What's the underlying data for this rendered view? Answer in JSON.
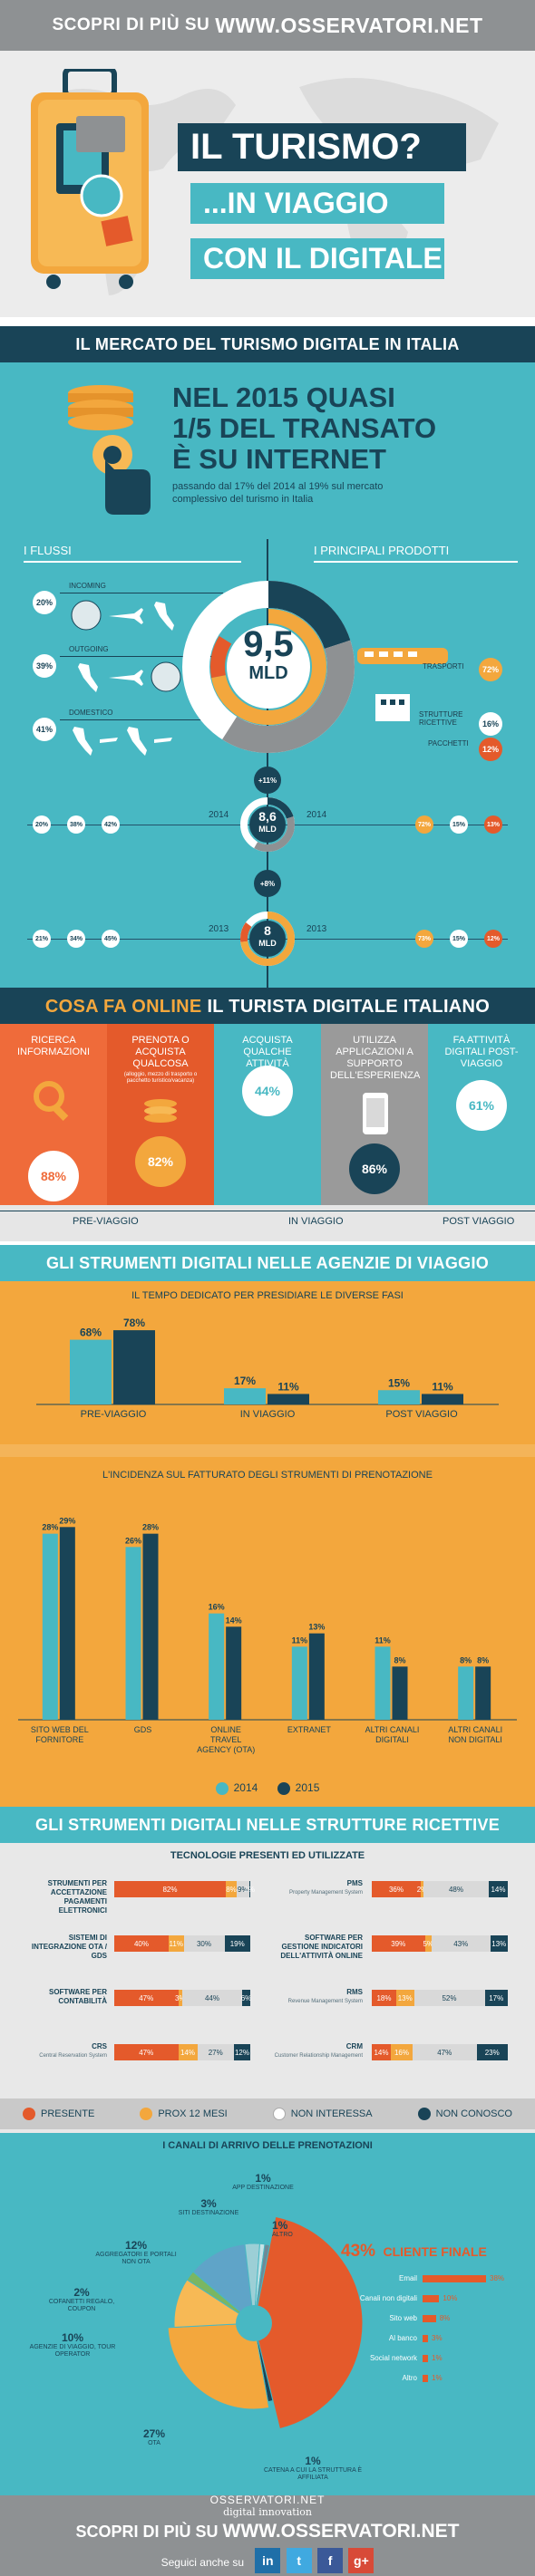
{
  "header": {
    "prefix": "SCOPRI DI PIÙ SU",
    "site": "WWW.OSSERVATORI.NET"
  },
  "hero": {
    "title": "IL TURISMO?",
    "line2": "...IN VIAGGIO",
    "line3": "CON IL DIGITALE"
  },
  "market": {
    "section_title": "IL MERCATO DEL TURISMO DIGITALE IN ITALIA",
    "headline": [
      "NEL 2015 QUASI",
      "1/5 DEL TRANSATO",
      "È SU INTERNET"
    ],
    "subline": [
      "passando dal 17% del 2014 al 19% sul mercato",
      "complessivo del turismo in Italia"
    ]
  },
  "flussi": {
    "left_header": "I FLUSSI",
    "right_header": "I PRINCIPALI PRODOTTI",
    "center_value": "9,5",
    "center_unit": "MLD",
    "flows": [
      {
        "label": "INCOMING",
        "pct": "20%"
      },
      {
        "label": "OUTGOING",
        "pct": "39%"
      },
      {
        "label": "DOMESTICO",
        "pct": "41%"
      }
    ],
    "products": [
      {
        "label": "TRASPORTI",
        "pct": "72%"
      },
      {
        "label": "STRUTTURE RICETTIVE",
        "pct": "16%"
      },
      {
        "label": "PACCHETTI",
        "pct": "12%"
      }
    ],
    "growth_2015": "+11%",
    "growth_2014": "+8%",
    "y2014": {
      "year": "2014",
      "value": "8,6",
      "unit": "MLD",
      "flows": [
        "20%",
        "38%",
        "42%"
      ],
      "products": [
        "72%",
        "15%",
        "13%"
      ]
    },
    "y2013": {
      "year": "2013",
      "value": "8",
      "unit": "MLD",
      "flows": [
        "21%",
        "34%",
        "45%"
      ],
      "products": [
        "73%",
        "15%",
        "12%"
      ]
    }
  },
  "online": {
    "section_title_a": "COSA FA ONLINE",
    "section_title_b": "IL TURISTA DIGITALE ITALIANO",
    "panels": [
      {
        "label": "RICERCA INFORMAZIONI",
        "pct": "88%",
        "color": "#ef6b3a"
      },
      {
        "label": "PRENOTA O ACQUISTA QUALCOSA",
        "sub": "(alloggio, mezzo di trasporto o pacchetto turistico/vacanza)",
        "pct": "82%",
        "color": "#e45a2b"
      },
      {
        "label": "ACQUISTA QUALCHE ATTIVITÀ",
        "pct": "44%",
        "color": "#48b8c3"
      },
      {
        "label": "UTILIZZA APPLICAZIONI A SUPPORTO DELL'ESPERIENZA",
        "pct": "86%",
        "color": "#9a9a9a"
      },
      {
        "label": "FA ATTIVITÀ DIGITALI POST-VIAGGIO",
        "pct": "61%",
        "color": "#48b8c3"
      }
    ],
    "phases": [
      "PRE-VIAGGIO",
      "IN VIAGGIO",
      "POST VIAGGIO"
    ]
  },
  "agenzie": {
    "section_title": "GLI STRUMENTI DIGITALI NELLE AGENZIE DI VIAGGIO",
    "chart1_title": "IL TEMPO DEDICATO PER PRESIDIARE LE DIVERSE FASI",
    "chart2_title": "L'INCIDENZA SUL FATTURATO DEGLI STRUMENTI DI PRENOTAZIONE",
    "legend": [
      "2014",
      "2015"
    ]
  },
  "chart_data": [
    {
      "type": "bar",
      "title": "IL TEMPO DEDICATO PER PRESIDIARE LE DIVERSE FASI",
      "categories": [
        "PRE-VIAGGIO",
        "IN VIAGGIO",
        "POST VIAGGIO"
      ],
      "series": [
        {
          "name": "2014",
          "values": [
            68,
            17,
            15
          ],
          "color": "#48b8c3"
        },
        {
          "name": "2015",
          "values": [
            78,
            11,
            11
          ],
          "color": "#194457"
        }
      ],
      "ylim": [
        0,
        100
      ]
    },
    {
      "type": "bar",
      "title": "L'INCIDENZA SUL FATTURATO DEGLI STRUMENTI DI PRENOTAZIONE",
      "categories": [
        "SITO WEB DEL FORNITORE",
        "GDS",
        "ONLINE TRAVEL AGENCY (OTA)",
        "EXTRANET",
        "ALTRI CANALI DIGITALI",
        "ALTRI CANALI NON DIGITALI"
      ],
      "series": [
        {
          "name": "2014",
          "values": [
            28,
            26,
            16,
            11,
            11,
            8
          ],
          "color": "#48b8c3"
        },
        {
          "name": "2015",
          "values": [
            29,
            28,
            14,
            13,
            8,
            8
          ],
          "color": "#194457"
        }
      ],
      "ylim": [
        0,
        30
      ]
    },
    {
      "type": "pie",
      "title": "I CANALI DI ARRIVO DELLE PRENOTAZIONI",
      "categories": [
        "CLIENTE FINALE",
        "CATENA A CUI LA STRUTTURA È AFFILIATA",
        "OTA",
        "AGENZIE DI VIAGGIO, TOUR OPERATOR",
        "COFANETTI REGALO, COUPON",
        "AGGREGATORI E PORTALI NON OTA",
        "SITI DESTINAZIONE",
        "APP DESTINAZIONE",
        "ALTRO"
      ],
      "values": [
        43,
        1,
        27,
        10,
        2,
        12,
        3,
        1,
        1
      ]
    },
    {
      "type": "bar",
      "title": "CLIENTE FINALE",
      "categories": [
        "Email",
        "Canali non digitali",
        "Sito web",
        "Al banco",
        "Social network",
        "Altro"
      ],
      "values": [
        38,
        10,
        8,
        3,
        1,
        1
      ]
    }
  ],
  "strutture": {
    "section_title": "GLI STRUMENTI DIGITALI NELLE STRUTTURE RICETTIVE",
    "sub_title": "TECNOLOGIE PRESENTI ED UTILIZZATE",
    "left": [
      {
        "label": "STRUMENTI PER ACCETTAZIONE PAGAMENTI ELETTRONICI",
        "values": [
          "82%",
          "8%",
          "9%",
          "1%"
        ],
        "fr": [
          82,
          8,
          9,
          1
        ]
      },
      {
        "label": "SISTEMI DI INTEGRAZIONE OTA / GDS",
        "values": [
          "40%",
          "11%",
          "30%",
          "19%"
        ],
        "fr": [
          40,
          11,
          30,
          19
        ]
      },
      {
        "label": "SOFTWARE PER CONTABILITÀ",
        "values": [
          "47%",
          "3%",
          "44%",
          "6%"
        ],
        "fr": [
          47,
          3,
          44,
          6
        ]
      },
      {
        "label": "CRS",
        "sub": "Central Reservation System",
        "values": [
          "47%",
          "14%",
          "27%",
          "12%"
        ],
        "fr": [
          47,
          14,
          27,
          12
        ]
      }
    ],
    "right": [
      {
        "label": "PMS",
        "sub": "Property Management System",
        "values": [
          "36%",
          "2%",
          "48%",
          "14%"
        ],
        "fr": [
          36,
          2,
          48,
          14
        ]
      },
      {
        "label": "SOFTWARE PER GESTIONE INDICATORI DELL'ATTIVITÀ ONLINE",
        "values": [
          "39%",
          "5%",
          "43%",
          "13%"
        ],
        "fr": [
          39,
          5,
          43,
          13
        ]
      },
      {
        "label": "RMS",
        "sub": "Revenue Management System",
        "values": [
          "18%",
          "13%",
          "52%",
          "17%"
        ],
        "fr": [
          18,
          13,
          52,
          17
        ]
      },
      {
        "label": "CRM",
        "sub": "Customer Relationship Management",
        "values": [
          "14%",
          "16%",
          "47%",
          "23%"
        ],
        "fr": [
          14,
          16,
          47,
          23
        ]
      }
    ],
    "legend": [
      "PRESENTE",
      "PROX 12 MESI",
      "NON INTERESSA",
      "NON CONOSCO"
    ],
    "colors": [
      "#e45a2b",
      "#f3a73d",
      "#d9d9d9",
      "#194457"
    ]
  },
  "canali": {
    "title": "I CANALI DI ARRIVO DELLE PRENOTAZIONI",
    "main_pct": "43%",
    "main_label": "CLIENTE FINALE",
    "labels": [
      {
        "pct": "1%",
        "text": "APP DESTINAZIONE"
      },
      {
        "pct": "3%",
        "text": "SITI DESTINAZIONE"
      },
      {
        "pct": "12%",
        "text": "AGGREGATORI E PORTALI NON OTA"
      },
      {
        "pct": "2%",
        "text": "COFANETTI REGALO, COUPON"
      },
      {
        "pct": "10%",
        "text": "AGENZIE DI VIAGGIO, TOUR OPERATOR"
      },
      {
        "pct": "27%",
        "text": "OTA"
      },
      {
        "pct": "1%",
        "text": "CATENA A CUI LA STRUTTURA È AFFILIATA"
      },
      {
        "pct": "1%",
        "text": "ALTRO"
      }
    ],
    "breakdown": [
      {
        "label": "Email",
        "pct": "38%"
      },
      {
        "label": "Canali non digitali",
        "pct": "10%"
      },
      {
        "label": "Sito web",
        "pct": "8%"
      },
      {
        "label": "Al banco",
        "pct": "3%"
      },
      {
        "label": "Social network",
        "pct": "1%"
      },
      {
        "label": "Altro",
        "pct": "1%"
      }
    ]
  },
  "footer": {
    "logo_top": "OSSERVATORI.NET",
    "logo_bottom": "digital innovation",
    "prefix": "SCOPRI DI PIÙ SU",
    "site": "WWW.OSSERVATORI.NET",
    "follow": "Seguici anche su",
    "social": [
      "in",
      "t",
      "f",
      "g+"
    ]
  }
}
